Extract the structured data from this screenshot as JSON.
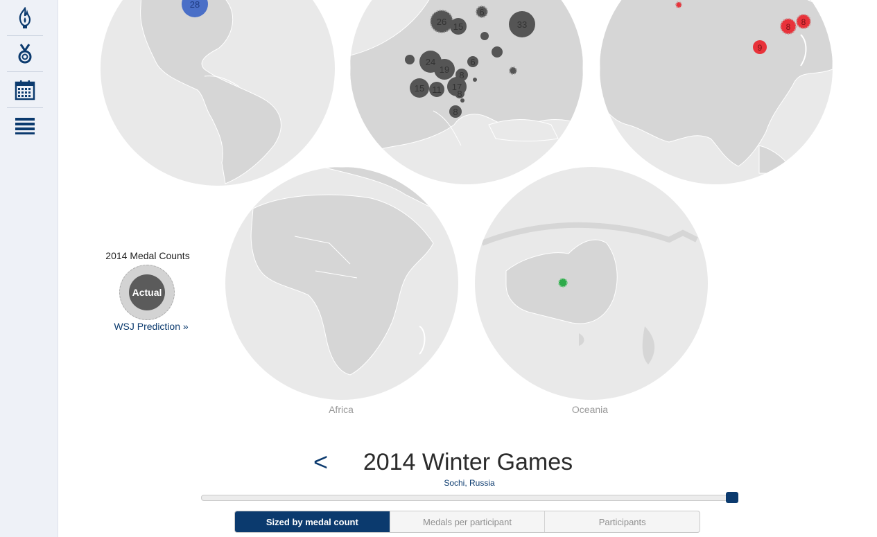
{
  "sidebar": {
    "items": [
      {
        "name": "flame-icon"
      },
      {
        "name": "medal-icon"
      },
      {
        "name": "calendar-icon"
      },
      {
        "name": "list-icon"
      }
    ]
  },
  "colors": {
    "accent": "#0b3a6e",
    "europe_marker": "#555555",
    "asia_marker": "#e8323a",
    "americas_marker": "#4a6fc7",
    "oceania_marker": "#2eaa4a",
    "globe_fill": "#e9e9e9",
    "land_fill": "#d6d6d6"
  },
  "regions": {
    "americas": {
      "markers": [
        "28"
      ]
    },
    "europe": {
      "markers": [
        "26",
        "15",
        "33",
        "24",
        "19",
        "8",
        "6",
        "15",
        "11",
        "17",
        "8",
        "8",
        "6"
      ]
    },
    "asia": {
      "markers": [
        "8",
        "8",
        "9"
      ]
    },
    "africa": {
      "label": "Africa"
    },
    "oceania": {
      "label": "Oceania"
    }
  },
  "legend": {
    "title": "2014 Medal Counts",
    "circle_label": "Actual",
    "link": "WSJ Prediction »"
  },
  "games": {
    "prev": "<",
    "title": "2014 Winter Games",
    "location": "Sochi, Russia",
    "timeline_progress": 1.0
  },
  "tabs": [
    {
      "label": "Sized by medal count",
      "active": true
    },
    {
      "label": "Medals per participant",
      "active": false
    },
    {
      "label": "Participants",
      "active": false
    }
  ]
}
